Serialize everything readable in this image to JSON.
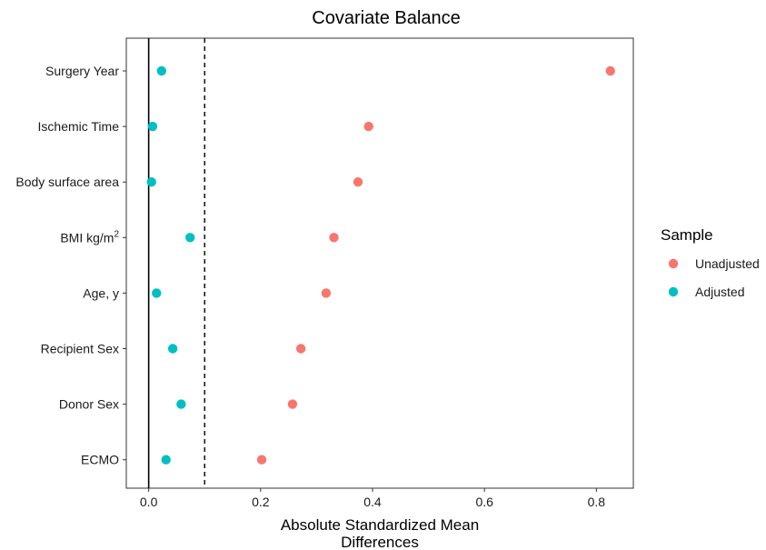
{
  "chart_data": {
    "type": "scatter",
    "title": "Covariate Balance",
    "xlabel_lines": [
      "Absolute Standardized Mean",
      "Differences"
    ],
    "ylabel": "",
    "categories": [
      "Surgery Year",
      "Ischemic Time",
      "Body surface area",
      "BMI kg/m",
      "Age, y",
      "Recipient Sex",
      "Donor Sex",
      "ECMO"
    ],
    "superscripts": {
      "BMI kg/m": "2"
    },
    "x_ticks": [
      0.0,
      0.2,
      0.4,
      0.6,
      0.8
    ],
    "x_tick_labels": [
      "0.0",
      "0.2",
      "0.4",
      "0.6",
      "0.8"
    ],
    "xlim": [
      -0.04,
      0.866
    ],
    "threshold": 0.1,
    "reference": 0.0,
    "legend": {
      "title": "Sample",
      "position": "right"
    },
    "series": [
      {
        "name": "Unadjusted",
        "color": "#F8766D",
        "values": [
          0.825,
          0.393,
          0.374,
          0.331,
          0.317,
          0.272,
          0.257,
          0.202
        ]
      },
      {
        "name": "Adjusted",
        "color": "#00BFC4",
        "values": [
          0.023,
          0.007,
          0.005,
          0.074,
          0.014,
          0.043,
          0.058,
          0.031
        ]
      }
    ]
  }
}
